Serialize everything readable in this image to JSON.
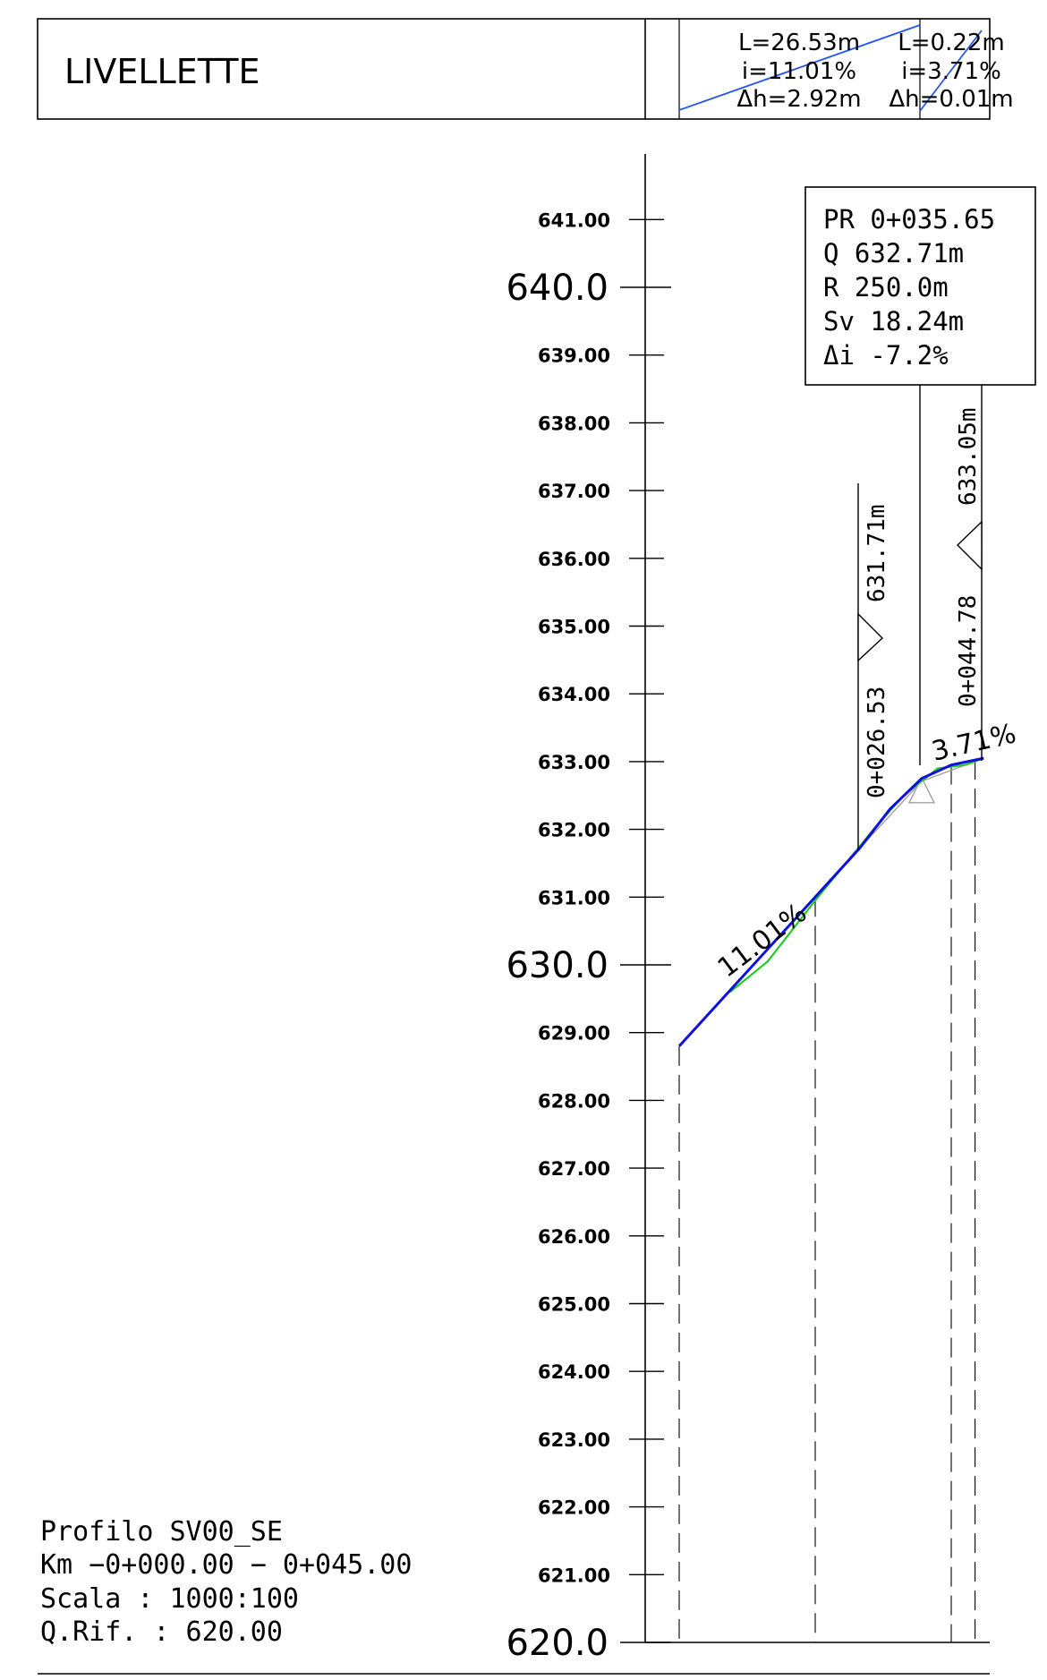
{
  "header": {
    "title": "LIVELLETTE",
    "segments": [
      {
        "L": "L=26.53m",
        "i": "i=11.01%",
        "dh": "Δh=2.92m"
      },
      {
        "L": "L=0.22m",
        "i": "i=3.71%",
        "dh": "Δh=0.01m"
      }
    ]
  },
  "axis": {
    "minor_labels": [
      "641.00",
      "639.00",
      "638.00",
      "637.00",
      "636.00",
      "635.00",
      "634.00",
      "633.00",
      "632.00",
      "631.00",
      "629.00",
      "628.00",
      "627.00",
      "626.00",
      "625.00",
      "624.00",
      "623.00",
      "622.00",
      "621.00"
    ],
    "minor_values": [
      641,
      639,
      638,
      637,
      636,
      635,
      634,
      633,
      632,
      631,
      629,
      628,
      627,
      626,
      625,
      624,
      623,
      622,
      621
    ],
    "major_labels": [
      "640.0",
      "630.0",
      "620.0"
    ],
    "major_values": [
      640,
      630,
      620
    ]
  },
  "profile": {
    "chainage_range": [
      0,
      45
    ],
    "grade_line": [
      [
        0,
        628.8
      ],
      [
        26.53,
        631.72
      ],
      [
        31,
        632.3
      ],
      [
        35.65,
        632.75
      ],
      [
        40,
        632.95
      ],
      [
        44.78,
        633.05
      ]
    ],
    "terrain_line": [
      [
        7.5,
        629.6
      ],
      [
        13,
        630.05
      ],
      [
        20,
        630.95
      ],
      [
        29,
        632.05
      ],
      [
        33,
        632.5
      ],
      [
        38,
        632.9
      ],
      [
        42,
        632.95
      ],
      [
        43.5,
        633.0
      ],
      [
        44.78,
        633.05
      ]
    ],
    "stations": [
      0,
      20,
      40,
      43.5
    ],
    "pvi": {
      "chainage": 35.65,
      "elev": 632.71
    },
    "tangents": [
      [
        26.53,
        631.72
      ],
      [
        35.65,
        632.71
      ],
      [
        44.78,
        633.05
      ]
    ]
  },
  "pvi_box": {
    "pr": "PR 0+035.65",
    "q": "Q  632.71m",
    "r": "R  250.0m",
    "sv": "Sv 18.24m",
    "di": "Δi -7.2%"
  },
  "marks": [
    {
      "station": "0+026.53",
      "elev": "631.71m"
    },
    {
      "station": "0+044.78",
      "elev": "633.05m"
    }
  ],
  "slopes": {
    "first": "11.01%",
    "second": "3.71%"
  },
  "info": {
    "line1": "Profilo SV00_SE",
    "line2": "Km  −0+000.00  −  0+045.00",
    "line3": "Scala  :  1000:100",
    "line4": "Q.Rif.  :  620.00"
  },
  "colors": {
    "grade": "#1010dd",
    "terrain": "#22cc22",
    "header_line": "#2255ee",
    "tangent": "#a0a0a0"
  }
}
